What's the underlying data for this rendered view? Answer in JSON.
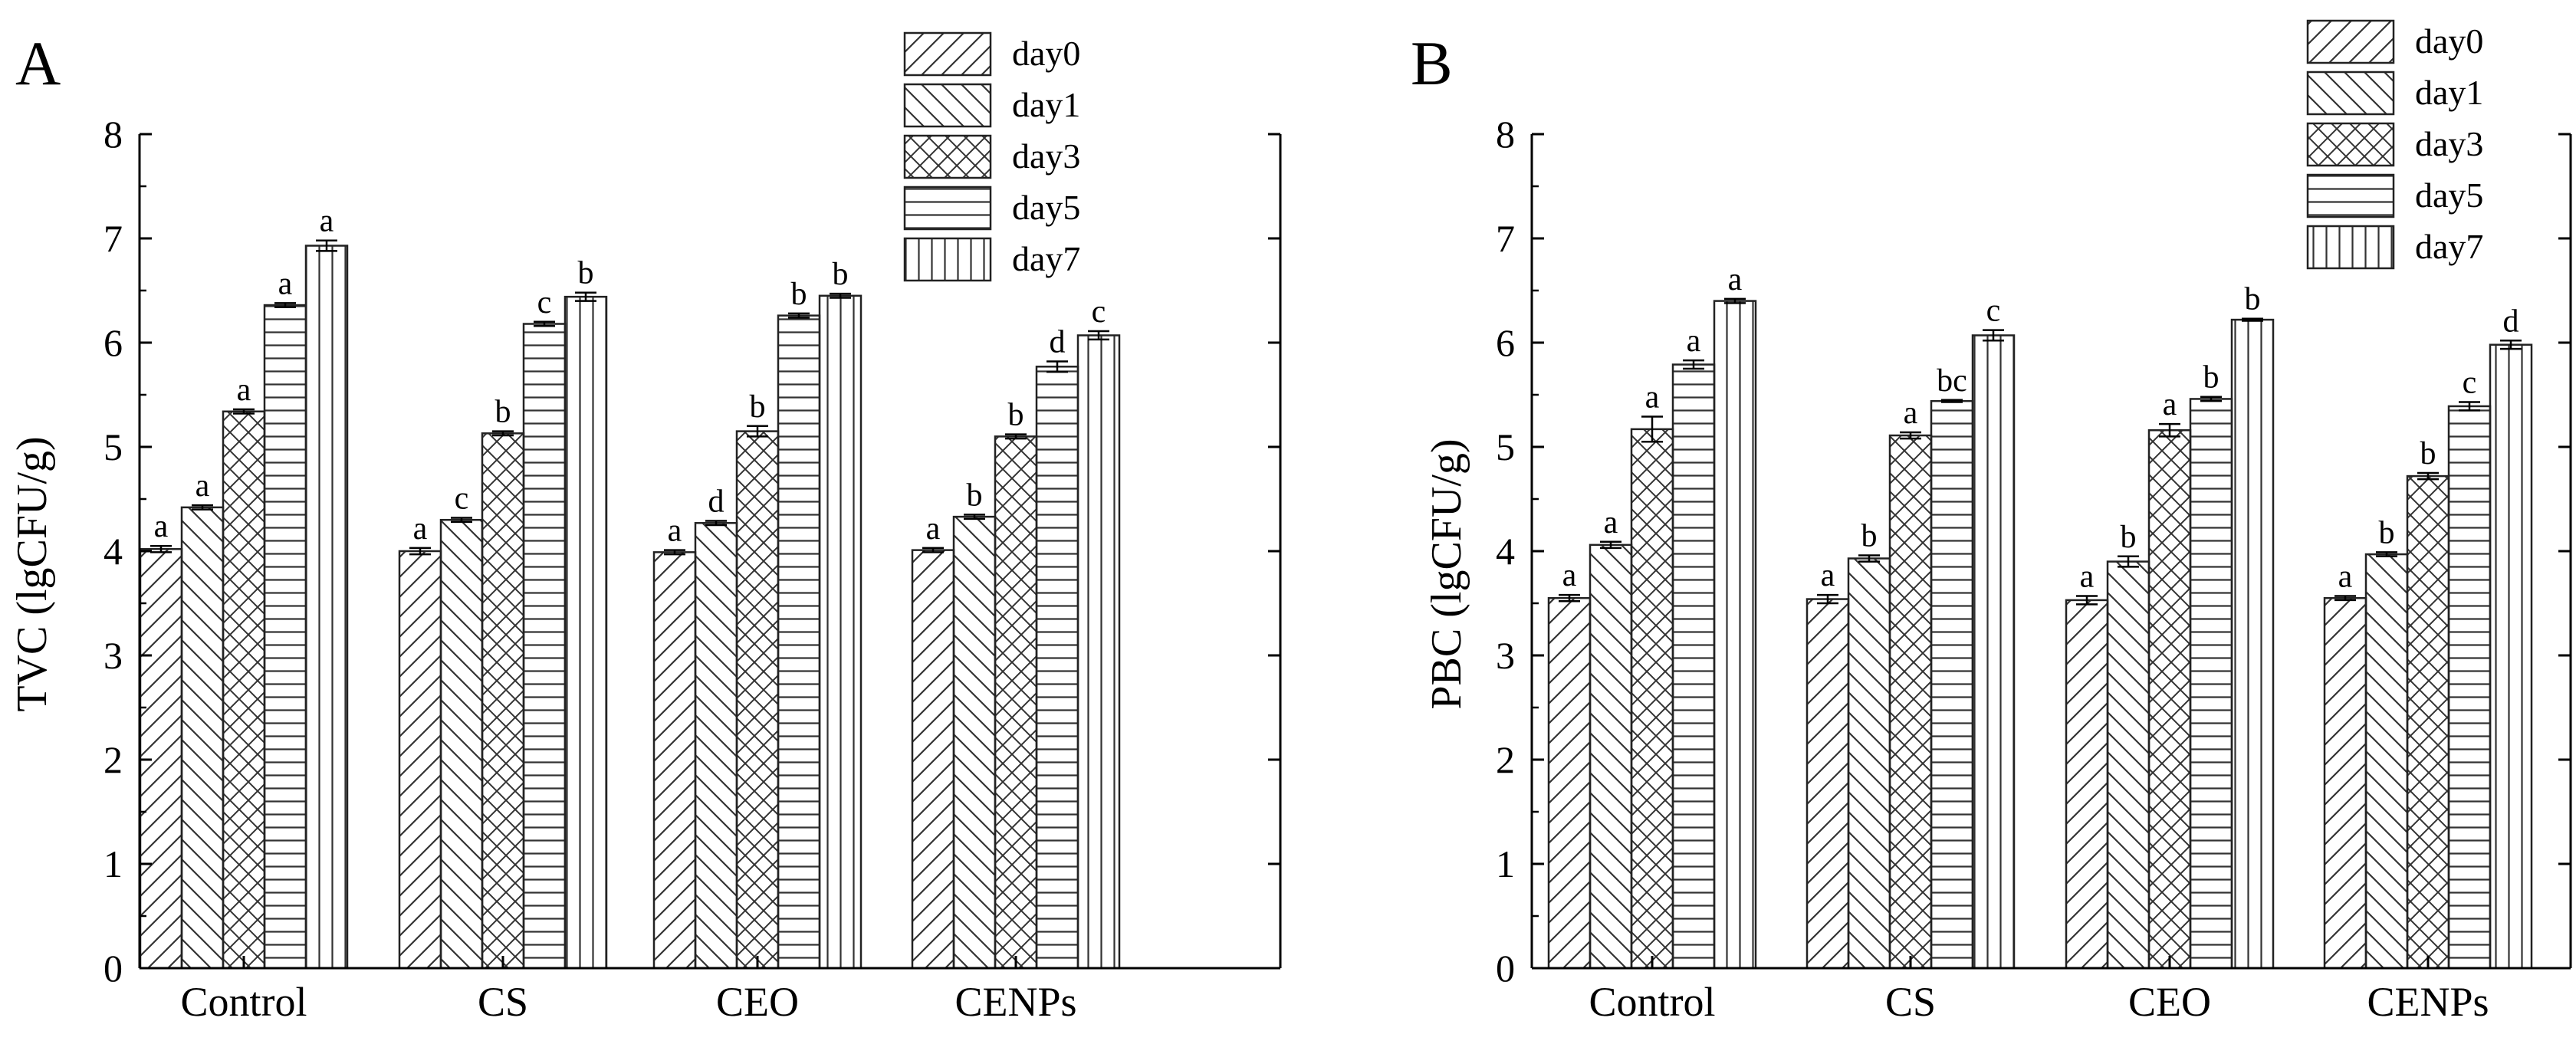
{
  "chart_data": [
    {
      "panel_label": "A",
      "type": "bar",
      "title": "",
      "xlabel": "",
      "ylabel": "TVC (lgCFU/g)",
      "ylim": [
        0,
        8
      ],
      "yticks": [
        "0",
        "1",
        "2",
        "3",
        "4",
        "5",
        "6",
        "7",
        "8"
      ],
      "categories": [
        "Control",
        "CS",
        "CEO",
        "CENPs"
      ],
      "legend_position": "top-right",
      "series": [
        {
          "name": "day0",
          "pattern": "diag-up",
          "values": [
            4.02,
            4.0,
            3.99,
            4.01
          ],
          "errors": [
            0.03,
            0.03,
            0.02,
            0.02
          ],
          "letters": [
            "a",
            "a",
            "a",
            "a"
          ]
        },
        {
          "name": "day1",
          "pattern": "diag-down",
          "values": [
            4.42,
            4.3,
            4.27,
            4.33
          ],
          "errors": [
            0.02,
            0.02,
            0.02,
            0.02
          ],
          "letters": [
            "a",
            "c",
            "d",
            "b"
          ]
        },
        {
          "name": "day3",
          "pattern": "cross",
          "values": [
            5.34,
            5.13,
            5.15,
            5.1
          ],
          "errors": [
            0.02,
            0.02,
            0.05,
            0.02
          ],
          "letters": [
            "a",
            "b",
            "b",
            "b"
          ]
        },
        {
          "name": "day5",
          "pattern": "horiz",
          "values": [
            6.36,
            6.18,
            6.26,
            5.77
          ],
          "errors": [
            0.02,
            0.02,
            0.02,
            0.05
          ],
          "letters": [
            "a",
            "c",
            "b",
            "d"
          ]
        },
        {
          "name": "day7",
          "pattern": "vert",
          "values": [
            6.93,
            6.44,
            6.45,
            6.07
          ],
          "errors": [
            0.05,
            0.04,
            0.02,
            0.04
          ],
          "letters": [
            "a",
            "b",
            "b",
            "c"
          ]
        }
      ]
    },
    {
      "panel_label": "B",
      "type": "bar",
      "title": "",
      "xlabel": "",
      "ylabel": "PBC (lgCFU/g)",
      "ylim": [
        0,
        8
      ],
      "yticks": [
        "0",
        "1",
        "2",
        "3",
        "4",
        "5",
        "6",
        "7",
        "8"
      ],
      "categories": [
        "Control",
        "CS",
        "CEO",
        "CENPs"
      ],
      "legend_position": "top-right",
      "series": [
        {
          "name": "day0",
          "pattern": "diag-up",
          "values": [
            3.55,
            3.54,
            3.53,
            3.55
          ],
          "errors": [
            0.03,
            0.04,
            0.04,
            0.02
          ],
          "letters": [
            "a",
            "a",
            "a",
            "a"
          ]
        },
        {
          "name": "day1",
          "pattern": "diag-down",
          "values": [
            4.06,
            3.93,
            3.9,
            3.97
          ],
          "errors": [
            0.03,
            0.03,
            0.05,
            0.02
          ],
          "letters": [
            "a",
            "b",
            "b",
            "b"
          ]
        },
        {
          "name": "day3",
          "pattern": "cross",
          "values": [
            5.17,
            5.11,
            5.16,
            4.72
          ],
          "errors": [
            0.12,
            0.03,
            0.06,
            0.03
          ],
          "letters": [
            "a",
            "a",
            "a",
            "b"
          ]
        },
        {
          "name": "day5",
          "pattern": "horiz",
          "values": [
            5.79,
            5.44,
            5.46,
            5.39
          ],
          "errors": [
            0.04,
            0.01,
            0.02,
            0.04
          ],
          "letters": [
            "a",
            "bc",
            "b",
            "c"
          ]
        },
        {
          "name": "day7",
          "pattern": "vert",
          "values": [
            6.4,
            6.07,
            6.22,
            5.98
          ],
          "errors": [
            0.02,
            0.05,
            0.01,
            0.04
          ],
          "letters": [
            "a",
            "c",
            "b",
            "d"
          ]
        }
      ]
    }
  ]
}
